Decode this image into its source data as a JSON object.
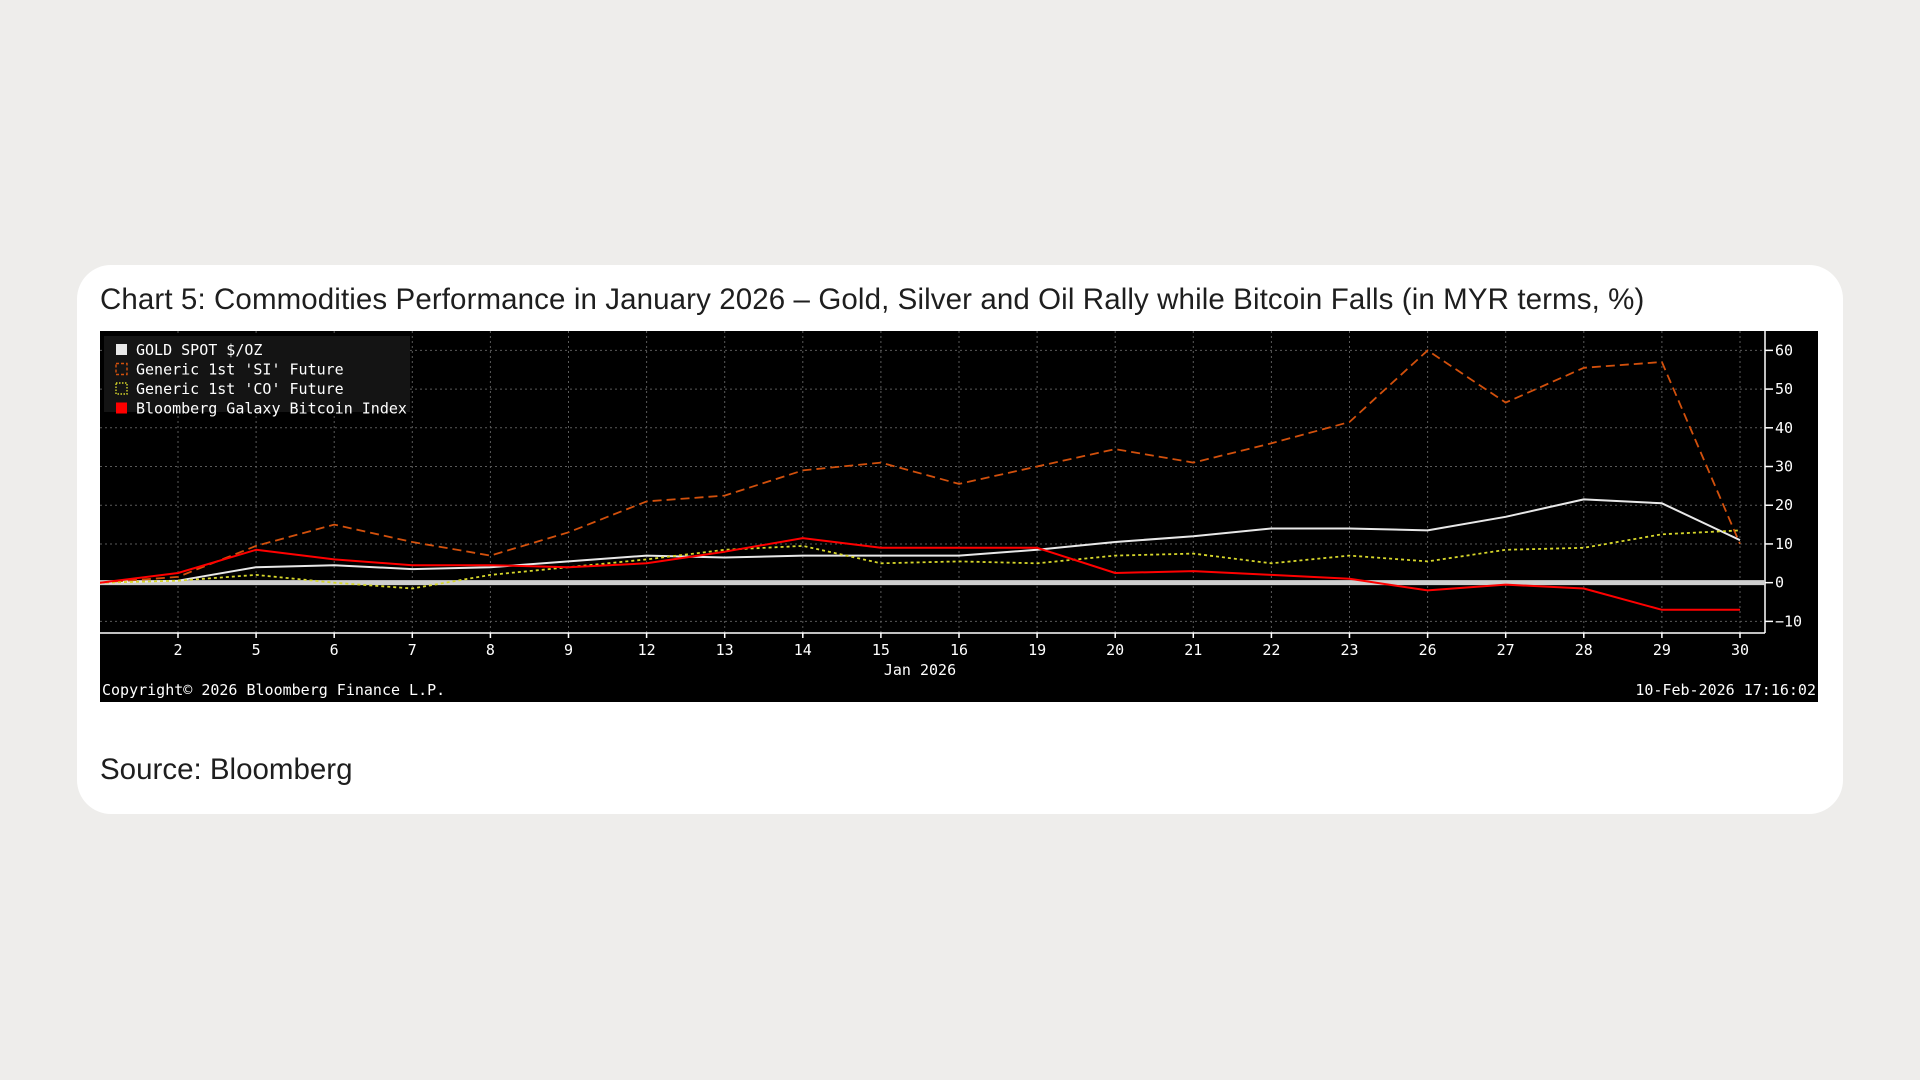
{
  "card": {
    "title": "Chart 5: Commodities Performance in January 2026 – Gold, Silver and Oil Rally while Bitcoin Falls (in MYR terms, %)",
    "source": "Source: Bloomberg"
  },
  "chart_data": {
    "type": "line",
    "x": [
      "2026-01-01",
      "2026-01-02",
      "2026-01-05",
      "2026-01-06",
      "2026-01-07",
      "2026-01-08",
      "2026-01-09",
      "2026-01-12",
      "2026-01-13",
      "2026-01-14",
      "2026-01-15",
      "2026-01-16",
      "2026-01-19",
      "2026-01-20",
      "2026-01-21",
      "2026-01-22",
      "2026-01-23",
      "2026-01-26",
      "2026-01-27",
      "2026-01-28",
      "2026-01-29",
      "2026-01-30"
    ],
    "x_tick_labels": [
      "2",
      "5",
      "6",
      "7",
      "8",
      "9",
      "12",
      "13",
      "14",
      "15",
      "16",
      "19",
      "20",
      "21",
      "22",
      "23",
      "26",
      "27",
      "28",
      "29",
      "30"
    ],
    "x_axis_label": "Jan 2026",
    "y_ticks": [
      60,
      50,
      40,
      30,
      20,
      10,
      0,
      -10
    ],
    "ylim": [
      -13,
      65
    ],
    "grid": true,
    "legend_position": "top-left",
    "series": [
      {
        "name": "GOLD SPOT $/OZ",
        "color": "#e8e8e8",
        "style": "solid",
        "values": [
          0,
          0.5,
          4,
          4.5,
          3.5,
          4,
          5.5,
          7,
          6.5,
          7,
          7,
          7,
          8.5,
          10.5,
          12,
          14,
          14,
          13.5,
          17,
          21.5,
          20.5,
          11
        ]
      },
      {
        "name": "Generic 1st 'SI' Future",
        "color": "#d2500c",
        "style": "dashed",
        "values": [
          0,
          1.5,
          9.5,
          15,
          10.5,
          7,
          13,
          21,
          22.5,
          29,
          31,
          25.5,
          30,
          34.5,
          31,
          36,
          41.5,
          60,
          46.5,
          55.5,
          57,
          10
        ]
      },
      {
        "name": "Generic 1st 'CO' Future",
        "color": "#d6d62a",
        "style": "dotted",
        "values": [
          0,
          0.5,
          2,
          0,
          -1.5,
          2,
          4,
          6,
          8.5,
          9.5,
          5,
          5.5,
          5,
          7,
          7.5,
          5,
          7,
          5.5,
          8.5,
          9,
          12.5,
          13.5
        ]
      },
      {
        "name": "Bloomberg Galaxy Bitcoin Index",
        "color": "#ff0000",
        "style": "solid",
        "values": [
          0,
          2.5,
          8.5,
          6,
          4.5,
          4.5,
          4,
          5,
          8,
          11.5,
          9,
          9,
          9,
          2.5,
          3,
          2,
          1,
          -2,
          -0.5,
          -1.5,
          -7,
          -7
        ]
      }
    ],
    "footer_left": "Copyright© 2026 Bloomberg Finance L.P.",
    "footer_right": "10-Feb-2026 17:16:02"
  },
  "colors": {
    "chart_background": "#000000",
    "zero_line": "#cfcfcf",
    "grid": "#5a5a5a",
    "axis_text": "#ffffff",
    "card_background": "#ffffff",
    "page_background": "#eeedeb"
  }
}
